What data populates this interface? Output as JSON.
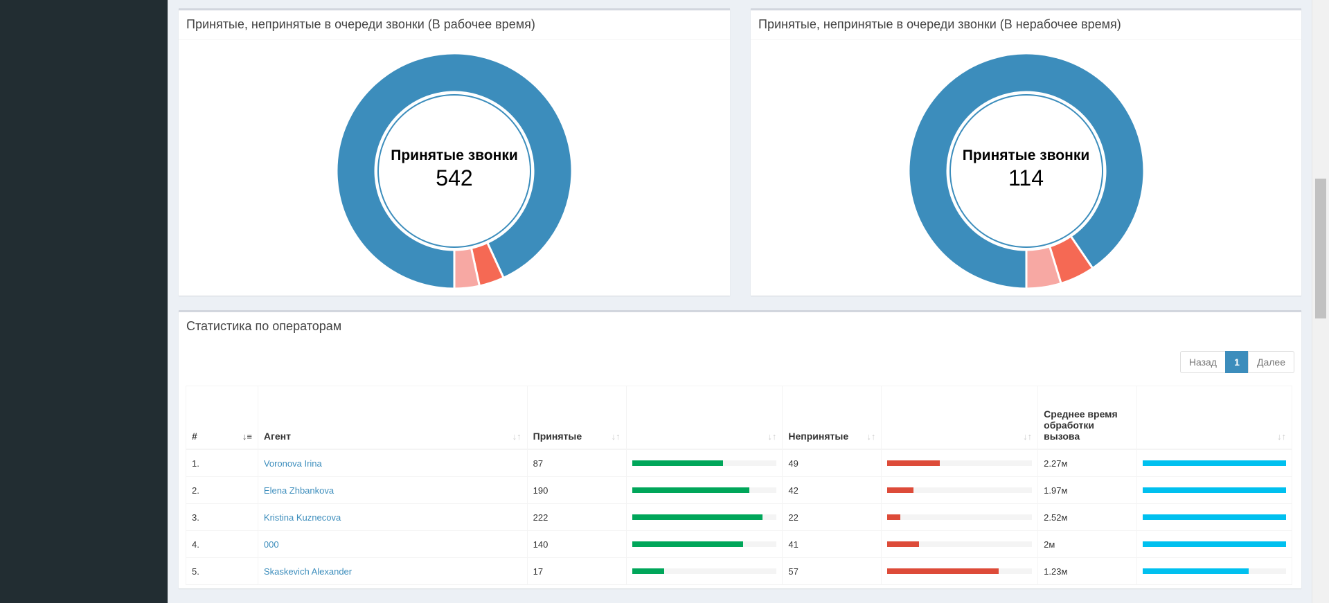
{
  "colors": {
    "accepted": "#3c8dbc",
    "unaccepted": "#f56954",
    "other": "#f7a8a3",
    "bar_accepted": "#00a65a",
    "bar_unaccepted": "#dd4b39",
    "bar_time": "#00c0ef"
  },
  "chart_data": [
    {
      "type": "pie",
      "title": "Принятые, непринятые в очереди звонки (В рабочее время)",
      "center_label": "Принятые звонки",
      "center_value": "542",
      "values": [
        542,
        20,
        20
      ]
    },
    {
      "type": "pie",
      "title": "Принятые, непринятые в очереди звонки (В нерабочее время)",
      "center_label": "Принятые звонки",
      "center_value": "114",
      "values": [
        114,
        6,
        6
      ]
    }
  ],
  "operators": {
    "title": "Статистика по операторам",
    "pager": {
      "prev": "Назад",
      "current": "1",
      "next": "Далее"
    },
    "headers": [
      "#",
      "Агент",
      "Принятые",
      "",
      "Непринятые",
      "",
      "Среднее время обработки вызова",
      ""
    ],
    "rows": [
      {
        "num": "1.",
        "agent": "Voronova Irina",
        "accepted": "87",
        "accepted_pct": 63,
        "unaccepted": "49",
        "unaccepted_pct": 36,
        "avg": "2.27м",
        "avg_pct": 100
      },
      {
        "num": "2.",
        "agent": "Elena Zhbankova",
        "accepted": "190",
        "accepted_pct": 81,
        "unaccepted": "42",
        "unaccepted_pct": 18,
        "avg": "1.97м",
        "avg_pct": 100
      },
      {
        "num": "3.",
        "agent": "Kristina Kuznecova",
        "accepted": "222",
        "accepted_pct": 90,
        "unaccepted": "22",
        "unaccepted_pct": 9,
        "avg": "2.52м",
        "avg_pct": 100
      },
      {
        "num": "4.",
        "agent": "000",
        "accepted": "140",
        "accepted_pct": 77,
        "unaccepted": "41",
        "unaccepted_pct": 22,
        "avg": "2м",
        "avg_pct": 100
      },
      {
        "num": "5.",
        "agent": "Skaskevich Alexander",
        "accepted": "17",
        "accepted_pct": 22,
        "unaccepted": "57",
        "unaccepted_pct": 77,
        "avg": "1.23м",
        "avg_pct": 74
      }
    ]
  }
}
